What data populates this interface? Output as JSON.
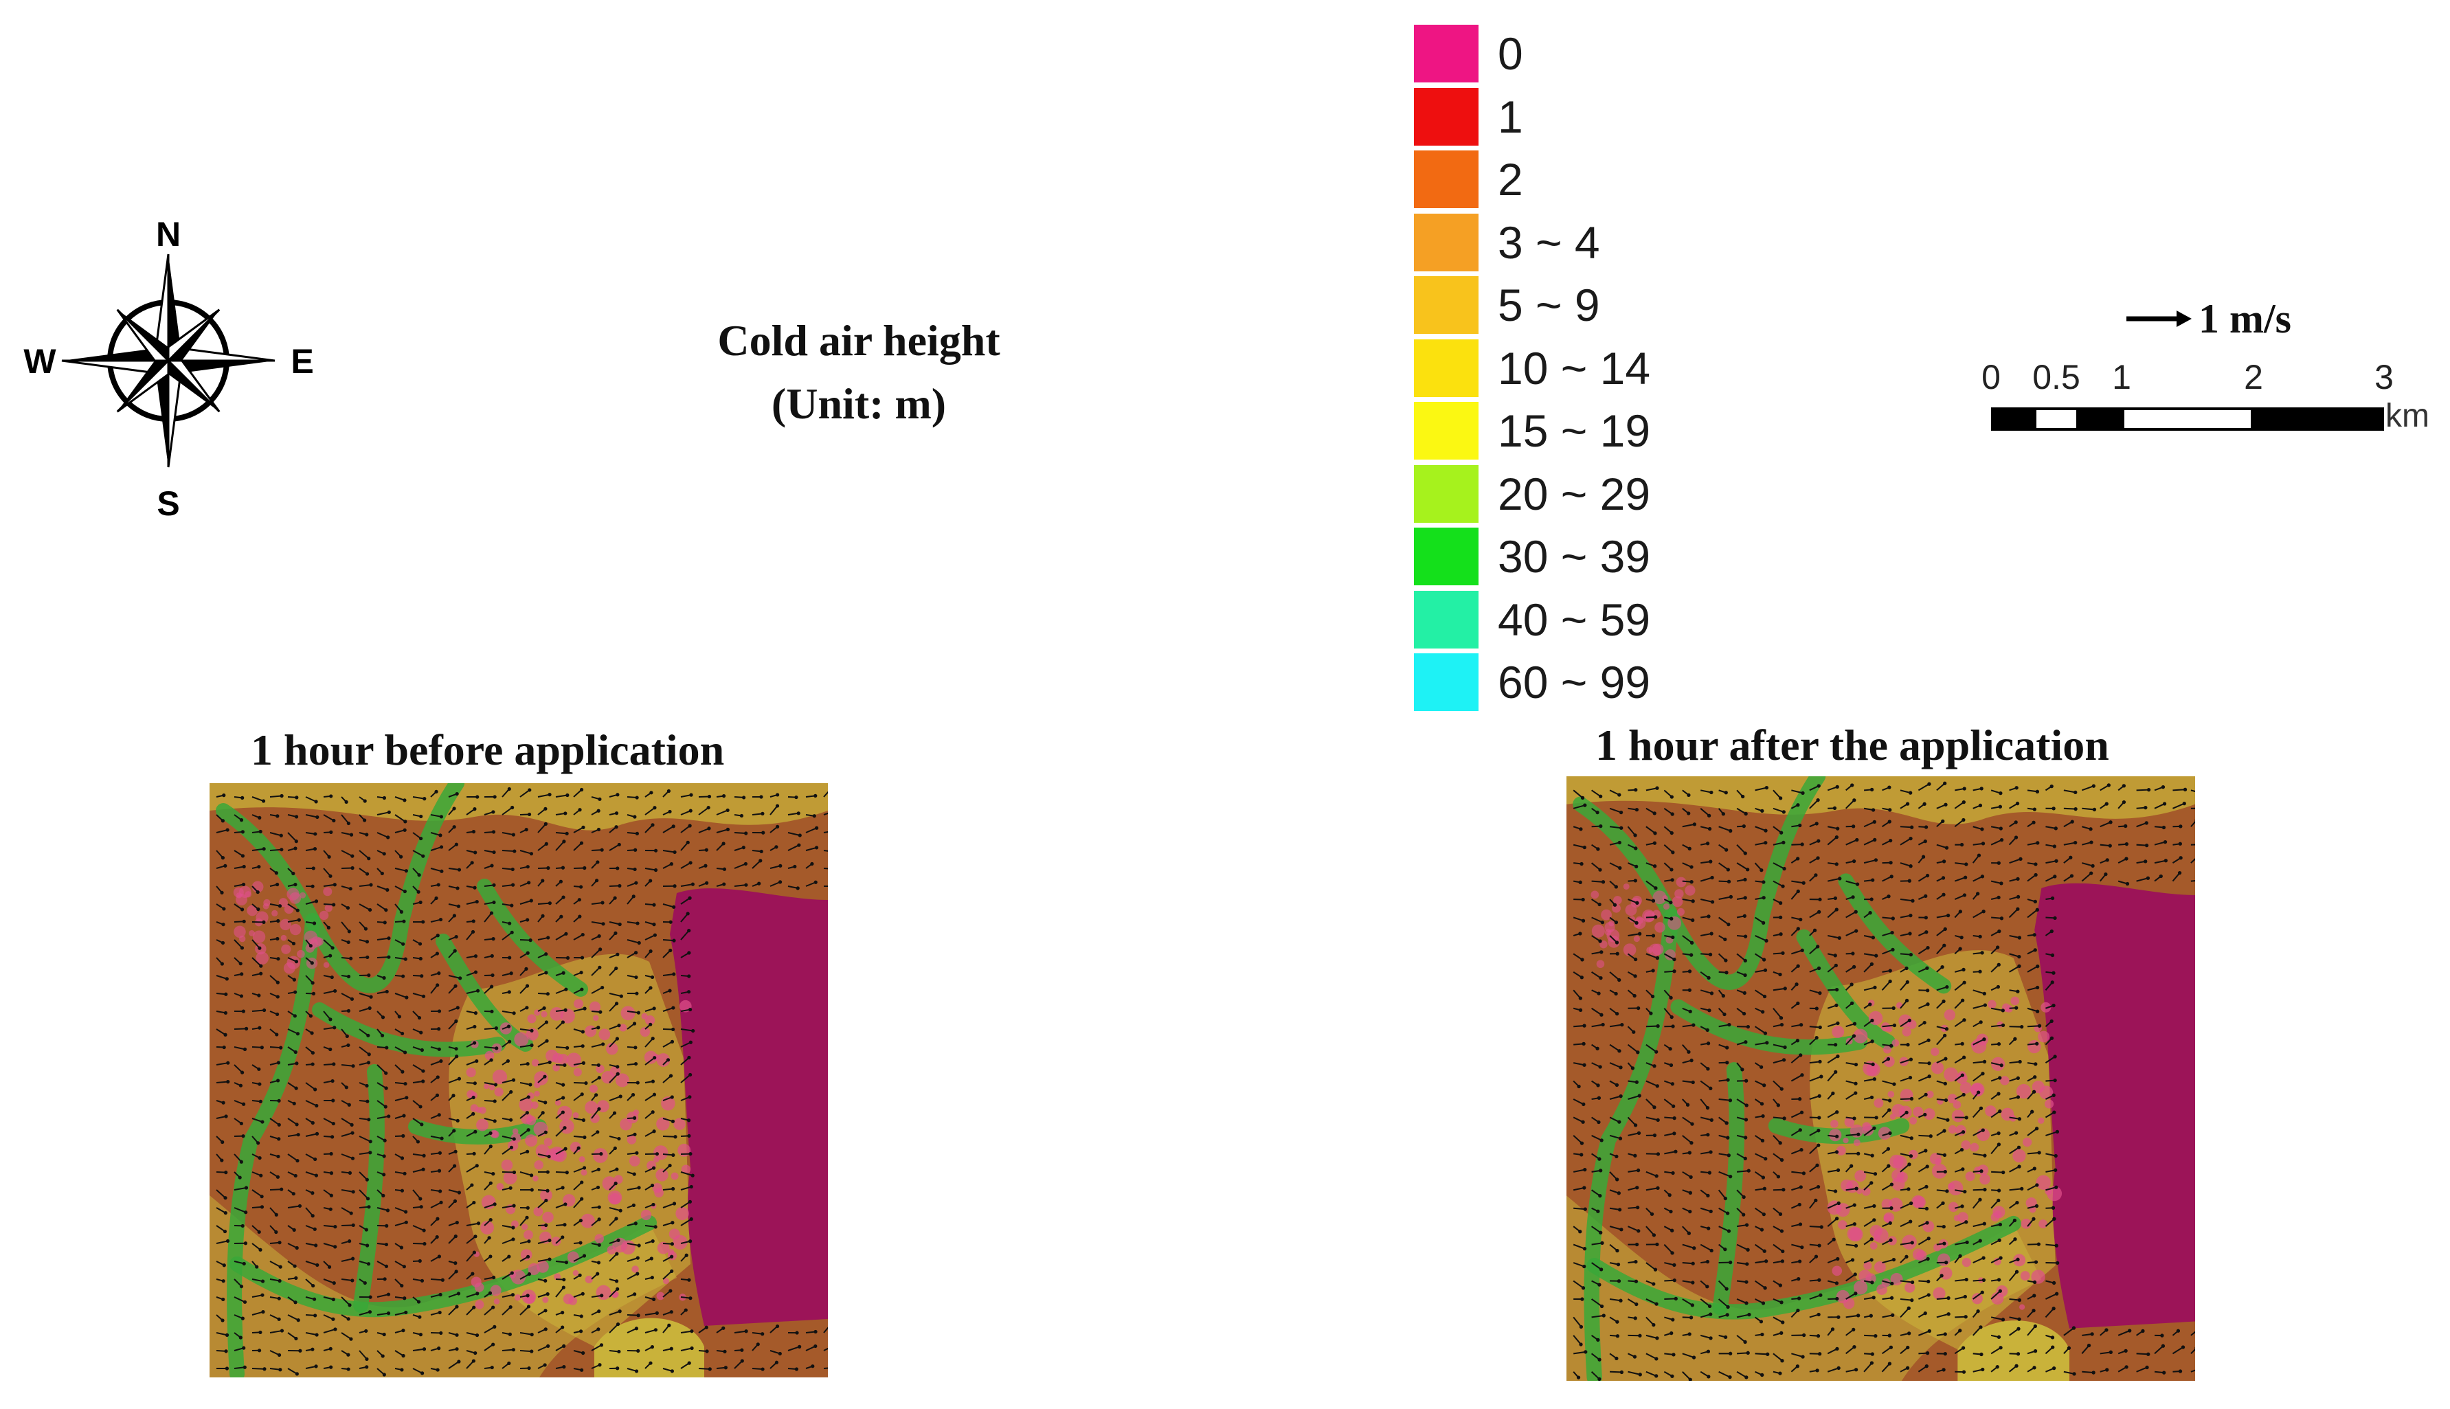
{
  "compass": {
    "n": "N",
    "s": "S",
    "e": "E",
    "w": "W"
  },
  "legend": {
    "title_line1": "Cold air height",
    "title_line2": "(Unit: m)",
    "items": [
      {
        "label": "0",
        "color": "#ee1583"
      },
      {
        "label": "1",
        "color": "#ee0f0f"
      },
      {
        "label": "2",
        "color": "#f26a12"
      },
      {
        "label": "3 ~ 4",
        "color": "#f5a024"
      },
      {
        "label": "5 ~ 9",
        "color": "#f8c31c"
      },
      {
        "label": "10 ~ 14",
        "color": "#fbe10e"
      },
      {
        "label": "15 ~ 19",
        "color": "#fbf812"
      },
      {
        "label": "20 ~ 29",
        "color": "#a6f21d"
      },
      {
        "label": "30 ~ 39",
        "color": "#14e01b"
      },
      {
        "label": "40 ~ 59",
        "color": "#23f0a5"
      },
      {
        "label": "60 ~ 99",
        "color": "#1ef2f5"
      }
    ]
  },
  "wind_reference": {
    "label": "1 m/s"
  },
  "scale_bar": {
    "ticks": [
      "0",
      "0.5",
      "1",
      "2",
      "3"
    ],
    "unit": "km"
  },
  "panels": [
    {
      "title": "1 hour before application"
    },
    {
      "title": "1 hour after the application"
    }
  ],
  "map_colors": {
    "terrain": "#a55a2a",
    "lake": "#9c1458",
    "valley": "#3aa838",
    "plain": "#c9b23a",
    "hotspot": "#e0508a",
    "arrow": "#111111"
  }
}
